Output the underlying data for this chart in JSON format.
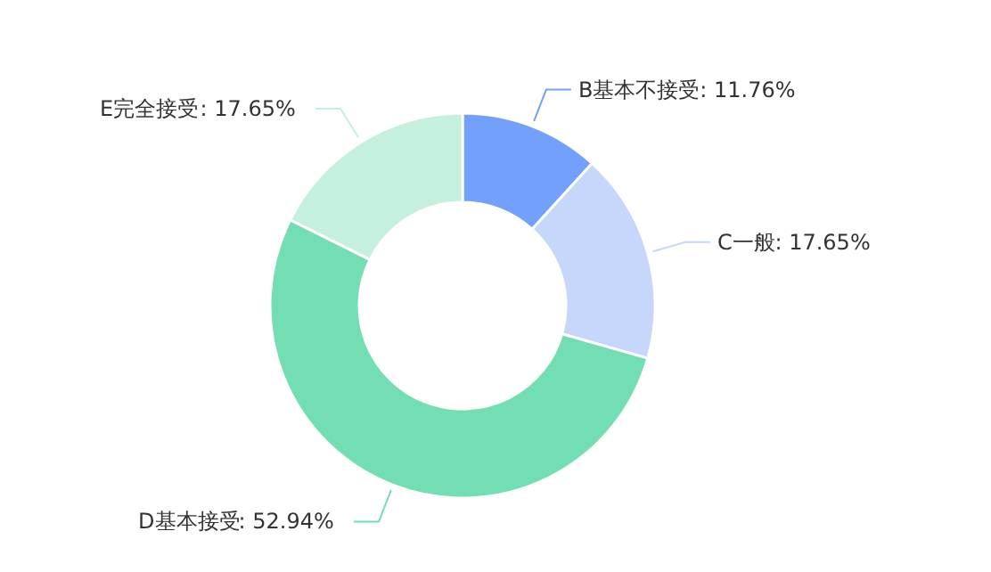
{
  "chart_data": {
    "type": "donut",
    "categories": [
      "B基本不接受",
      "C一般",
      "D基本接受",
      "E完全接受"
    ],
    "values": [
      11.76,
      17.65,
      52.94,
      17.65
    ],
    "colors": [
      "#73a0fa",
      "#c6d7fb",
      "#73deb3",
      "#c5f0dd"
    ],
    "value_labels": [
      ": 11.76%",
      ": 17.65%",
      ": 52.94%",
      ": 17.65%"
    ]
  }
}
